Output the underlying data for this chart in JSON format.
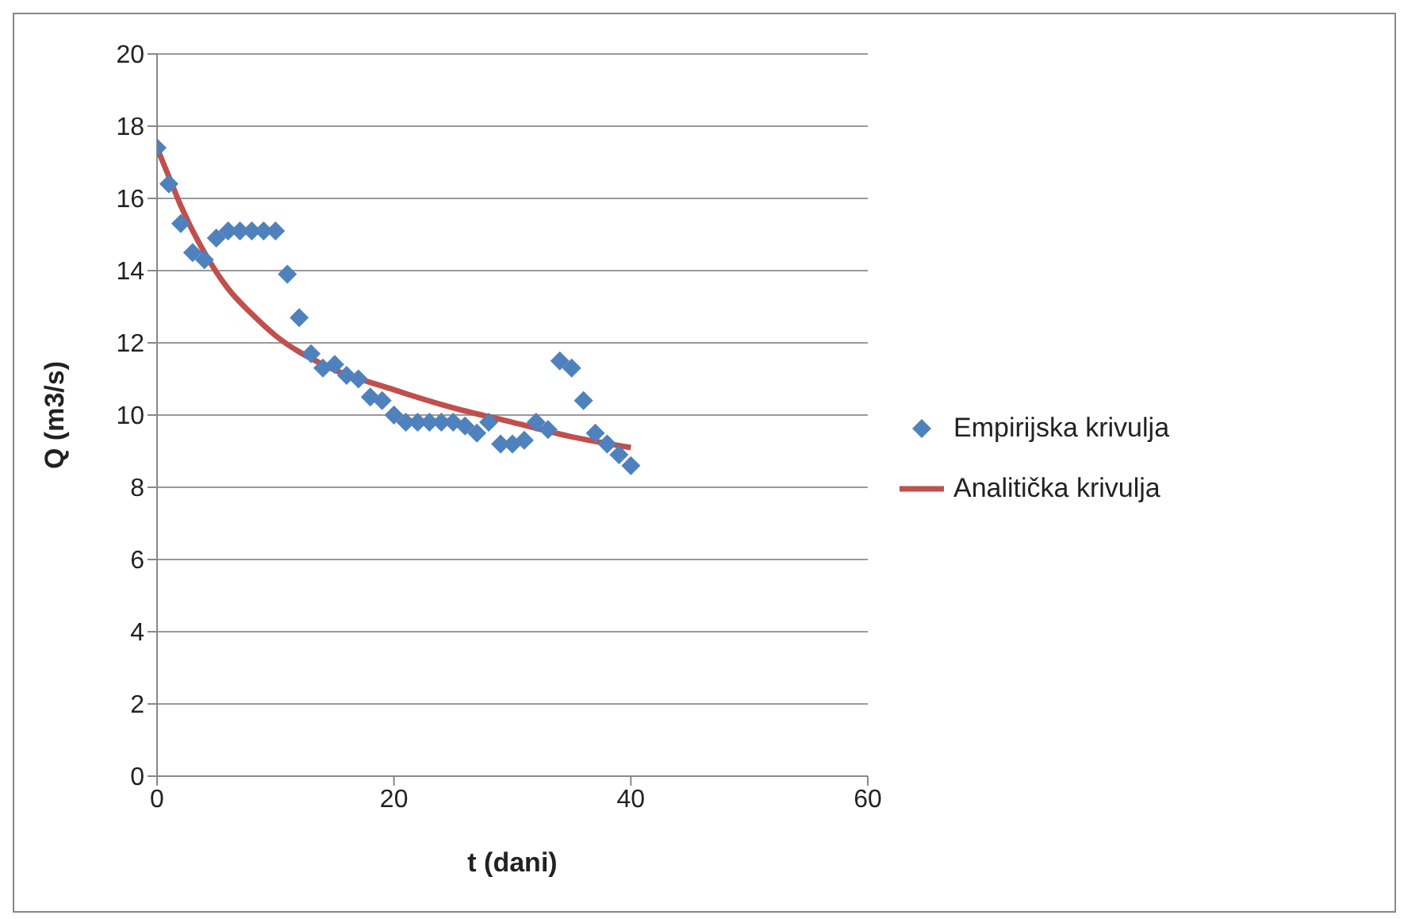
{
  "chart_data": {
    "type": "scatter",
    "xlabel": "t (dani)",
    "ylabel": "Q (m3/s)",
    "xlim": [
      0,
      60
    ],
    "xticks": [
      0,
      20,
      40,
      60
    ],
    "ylim": [
      0,
      20
    ],
    "yticks": [
      0,
      2,
      4,
      6,
      8,
      10,
      12,
      14,
      16,
      18,
      20
    ],
    "grid": "y",
    "legend": "right",
    "series": [
      {
        "name": "Empirijska krivulja",
        "marker": "diamond",
        "color": "#4f81bd",
        "x": [
          0,
          1,
          2,
          3,
          4,
          5,
          6,
          7,
          8,
          9,
          10,
          11,
          12,
          13,
          14,
          15,
          16,
          17,
          18,
          19,
          20,
          21,
          22,
          23,
          24,
          25,
          26,
          27,
          28,
          29,
          30,
          31,
          32,
          33,
          34,
          35,
          36,
          37,
          38,
          39,
          40
        ],
        "values": [
          17.4,
          16.4,
          15.3,
          14.5,
          14.3,
          14.9,
          15.1,
          15.1,
          15.1,
          15.1,
          15.1,
          13.9,
          12.7,
          11.7,
          11.3,
          11.4,
          11.1,
          11.0,
          10.5,
          10.4,
          10.0,
          9.8,
          9.8,
          9.8,
          9.8,
          9.8,
          9.7,
          9.5,
          9.8,
          9.2,
          9.2,
          9.3,
          9.8,
          9.6,
          11.5,
          11.3,
          10.4,
          9.5,
          9.2,
          8.9,
          8.6
        ]
      },
      {
        "name": "Analitička krivulja",
        "type": "line",
        "marker": "none",
        "line_style": "solid",
        "color": "#c0504d",
        "x": [
          0,
          1,
          2,
          4,
          6,
          8,
          10,
          14,
          20,
          25,
          30,
          35,
          40
        ],
        "values": [
          17.4,
          16.6,
          15.8,
          14.5,
          13.5,
          12.8,
          12.2,
          11.4,
          10.7,
          10.2,
          9.8,
          9.4,
          9.1
        ]
      }
    ]
  }
}
